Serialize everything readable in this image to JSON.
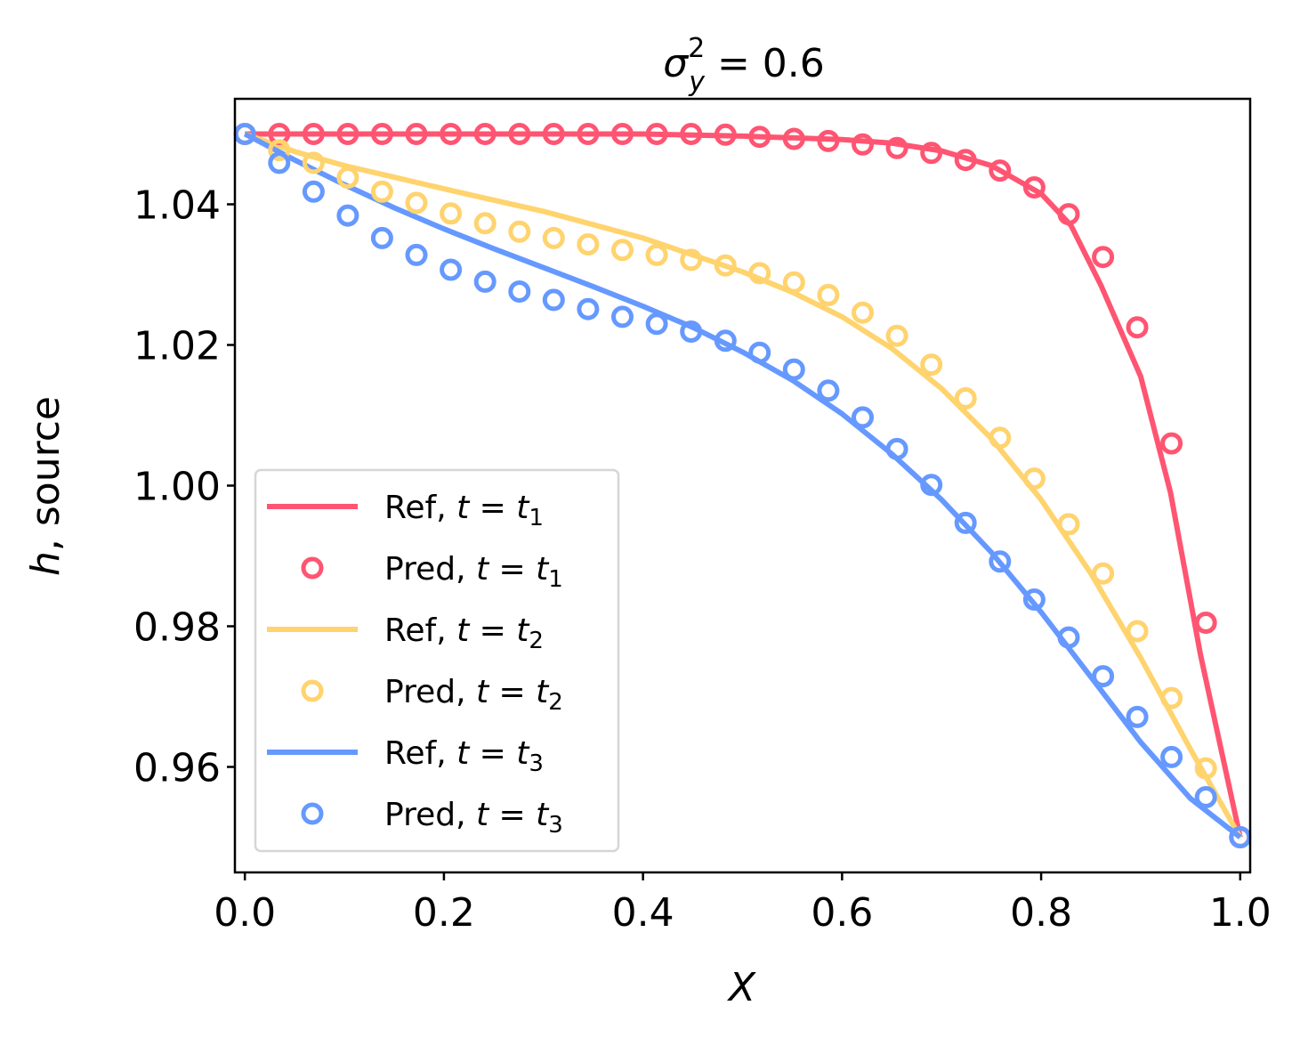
{
  "chart_data": {
    "type": "line",
    "title": {
      "sym": "σ",
      "sup": "2",
      "sub": "y",
      "rest": " = 0.6"
    },
    "xlabel": "X",
    "ylabel": {
      "italic": "h",
      "rest": ", source"
    },
    "xlim": [
      -0.01,
      1.01
    ],
    "ylim": [
      0.945,
      1.055
    ],
    "xticks": [
      0.0,
      0.2,
      0.4,
      0.6,
      0.8,
      1.0
    ],
    "xtick_labels": [
      "0.0",
      "0.2",
      "0.4",
      "0.6",
      "0.8",
      "1.0"
    ],
    "yticks": [
      0.96,
      0.98,
      1.0,
      1.02,
      1.04
    ],
    "ytick_labels": [
      "0.96",
      "0.98",
      "1.00",
      "1.02",
      "1.04"
    ],
    "legend_position": "lower-left",
    "pred_x": [
      0.0,
      0.0345,
      0.069,
      0.1034,
      0.1379,
      0.1724,
      0.2069,
      0.2414,
      0.2759,
      0.3103,
      0.3448,
      0.3793,
      0.4138,
      0.4483,
      0.4828,
      0.5172,
      0.5517,
      0.5862,
      0.6207,
      0.6552,
      0.6897,
      0.7241,
      0.7586,
      0.7931,
      0.8276,
      0.8621,
      0.8966,
      0.931,
      0.9655,
      1.0
    ],
    "series": [
      {
        "name": "t1",
        "color": "#ff5572",
        "ref_label": "Ref, ",
        "pred_label": "Pred, ",
        "tvar": "t",
        "eq": " = ",
        "tsub": "1",
        "ref_x": [
          0.0,
          0.1,
          0.2,
          0.3,
          0.4,
          0.5,
          0.6,
          0.65,
          0.7,
          0.75,
          0.8,
          0.83,
          0.86,
          0.9,
          0.93,
          0.96,
          1.0
        ],
        "ref_y": [
          1.05,
          1.05,
          1.05,
          1.05,
          1.05,
          1.0497,
          1.0492,
          1.0487,
          1.0476,
          1.0455,
          1.0415,
          1.037,
          1.0285,
          1.0155,
          0.999,
          0.976,
          0.95
        ],
        "pred_y": [
          1.05,
          1.05,
          1.05,
          1.05,
          1.05,
          1.05,
          1.05,
          1.05,
          1.05,
          1.05,
          1.05,
          1.05,
          1.05,
          1.05,
          1.0499,
          1.0496,
          1.0493,
          1.049,
          1.0485,
          1.048,
          1.0473,
          1.0463,
          1.0448,
          1.0424,
          1.0386,
          1.0325,
          1.0225,
          1.006,
          0.9805,
          0.95
        ]
      },
      {
        "name": "t2",
        "color": "#ffd36e",
        "ref_label": "Ref, ",
        "pred_label": "Pred, ",
        "tvar": "t",
        "eq": " = ",
        "tsub": "2",
        "ref_x": [
          0.0,
          0.05,
          0.1,
          0.2,
          0.3,
          0.4,
          0.5,
          0.55,
          0.6,
          0.65,
          0.7,
          0.75,
          0.8,
          0.85,
          0.9,
          0.95,
          1.0
        ],
        "ref_y": [
          1.05,
          1.0475,
          1.0455,
          1.0422,
          1.039,
          1.0352,
          1.0304,
          1.0275,
          1.024,
          1.0195,
          1.0138,
          1.0067,
          0.998,
          0.9875,
          0.9755,
          0.9625,
          0.95
        ],
        "pred_y": [
          1.05,
          1.0477,
          1.0459,
          1.0438,
          1.0418,
          1.0402,
          1.0387,
          1.0373,
          1.0361,
          1.0352,
          1.0343,
          1.0335,
          1.0328,
          1.0321,
          1.0313,
          1.0302,
          1.0289,
          1.0271,
          1.0246,
          1.0213,
          1.0172,
          1.0124,
          1.0068,
          1.001,
          0.9945,
          0.9875,
          0.9793,
          0.9698,
          0.9598,
          0.95
        ]
      },
      {
        "name": "t3",
        "color": "#6699ff",
        "ref_label": "Ref, ",
        "pred_label": "Pred, ",
        "tvar": "t",
        "eq": " = ",
        "tsub": "3",
        "ref_x": [
          0.0,
          0.05,
          0.1,
          0.15,
          0.2,
          0.25,
          0.3,
          0.35,
          0.4,
          0.45,
          0.5,
          0.55,
          0.6,
          0.65,
          0.7,
          0.75,
          0.8,
          0.85,
          0.9,
          0.95,
          1.0
        ],
        "ref_y": [
          1.05,
          1.0463,
          1.0428,
          1.0395,
          1.0365,
          1.0337,
          1.031,
          1.0283,
          1.0255,
          1.0225,
          1.019,
          1.015,
          1.0102,
          1.0045,
          0.998,
          0.9905,
          0.982,
          0.9728,
          0.9635,
          0.9555,
          0.95
        ],
        "pred_y": [
          1.05,
          1.0459,
          1.0418,
          1.0384,
          1.0352,
          1.0328,
          1.0307,
          1.029,
          1.0276,
          1.0264,
          1.0251,
          1.024,
          1.023,
          1.0219,
          1.0206,
          1.0189,
          1.0165,
          1.0135,
          1.0097,
          1.0052,
          1.0001,
          0.9947,
          0.9892,
          0.9838,
          0.9784,
          0.9729,
          0.9671,
          0.9614,
          0.9557,
          0.95
        ]
      }
    ]
  }
}
